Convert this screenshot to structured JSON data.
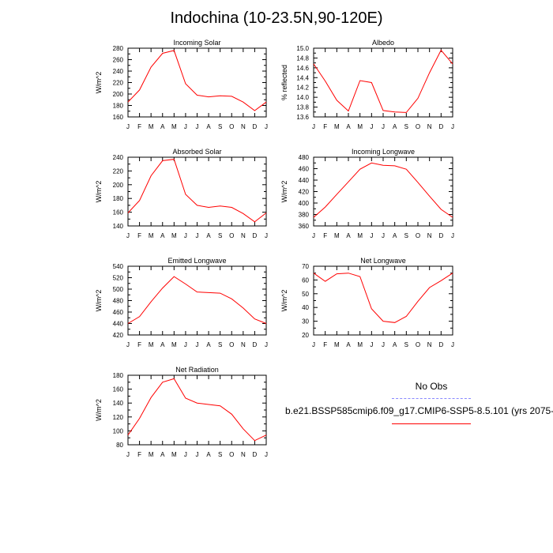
{
  "title": "Indochina (10-23.5N,90-120E)",
  "legend": {
    "obs_label": "No Obs",
    "obs_color": "#8888ff",
    "model_label": "b.e21.BSSP585cmip6.f09_g17.CMIP6-SSP5-8.5.101 (yrs 2075-",
    "model_color": "#ff0000"
  },
  "chart_data": [
    {
      "type": "line",
      "title": "Incoming Solar",
      "ylabel": "W/m^2",
      "categories": [
        "J",
        "F",
        "M",
        "A",
        "M",
        "J",
        "J",
        "A",
        "S",
        "O",
        "N",
        "D",
        "J"
      ],
      "ylim": [
        160,
        280
      ],
      "yticks": [
        160,
        180,
        200,
        220,
        240,
        260,
        280
      ],
      "series": [
        {
          "values": [
            186,
            207,
            247,
            271,
            276,
            218,
            198,
            195,
            197,
            196,
            186,
            171,
            186
          ],
          "color": "#ff0000"
        }
      ]
    },
    {
      "type": "line",
      "title": "Albedo",
      "ylabel": "% reflected",
      "categories": [
        "J",
        "F",
        "M",
        "A",
        "M",
        "J",
        "J",
        "A",
        "S",
        "O",
        "N",
        "D",
        "J"
      ],
      "ylim": [
        13.6,
        15.0
      ],
      "yticks": [
        13.6,
        13.8,
        14.0,
        14.2,
        14.4,
        14.6,
        14.8,
        15.0
      ],
      "ytick_decimals": 1,
      "series": [
        {
          "values": [
            14.68,
            14.33,
            13.94,
            13.72,
            14.34,
            14.3,
            13.73,
            13.7,
            13.69,
            13.98,
            14.5,
            14.96,
            14.68
          ],
          "color": "#ff0000"
        }
      ]
    },
    {
      "type": "line",
      "title": "Absorbed Solar",
      "ylabel": "W/m^2",
      "categories": [
        "J",
        "F",
        "M",
        "A",
        "M",
        "J",
        "J",
        "A",
        "S",
        "O",
        "N",
        "D",
        "J"
      ],
      "ylim": [
        140,
        240
      ],
      "yticks": [
        140,
        160,
        180,
        200,
        220,
        240
      ],
      "series": [
        {
          "values": [
            159,
            177,
            213,
            235,
            237,
            186,
            170,
            167,
            169,
            167,
            158,
            146,
            159
          ],
          "color": "#ff0000"
        }
      ]
    },
    {
      "type": "line",
      "title": "Incoming Longwave",
      "ylabel": "W/m^2",
      "categories": [
        "J",
        "F",
        "M",
        "A",
        "M",
        "J",
        "J",
        "A",
        "S",
        "O",
        "N",
        "D",
        "J"
      ],
      "ylim": [
        360,
        480
      ],
      "yticks": [
        360,
        380,
        400,
        420,
        440,
        460,
        480
      ],
      "series": [
        {
          "values": [
            375,
            393,
            415,
            437,
            459,
            470,
            466,
            465,
            459,
            436,
            412,
            389,
            375
          ],
          "color": "#ff0000"
        }
      ]
    },
    {
      "type": "line",
      "title": "Emitted Longwave",
      "ylabel": "W/m^2",
      "categories": [
        "J",
        "F",
        "M",
        "A",
        "M",
        "J",
        "J",
        "A",
        "S",
        "O",
        "N",
        "D",
        "J"
      ],
      "ylim": [
        420,
        540
      ],
      "yticks": [
        420,
        440,
        460,
        480,
        500,
        520,
        540
      ],
      "series": [
        {
          "values": [
            440,
            452,
            478,
            502,
            522,
            509,
            495,
            494,
            493,
            483,
            467,
            448,
            440
          ],
          "color": "#ff0000"
        }
      ]
    },
    {
      "type": "line",
      "title": "Net Longwave",
      "ylabel": "W/m^2",
      "categories": [
        "J",
        "F",
        "M",
        "A",
        "M",
        "J",
        "J",
        "A",
        "S",
        "O",
        "N",
        "D",
        "J"
      ],
      "ylim": [
        20,
        70
      ],
      "yticks": [
        20,
        30,
        40,
        50,
        60,
        70
      ],
      "series": [
        {
          "values": [
            65,
            59,
            64.5,
            65,
            62.5,
            39,
            30,
            29,
            33.5,
            44.5,
            54.5,
            59.5,
            65
          ],
          "color": "#ff0000"
        }
      ]
    },
    {
      "type": "line",
      "title": "Net Radiation",
      "ylabel": "W/m^2",
      "categories": [
        "J",
        "F",
        "M",
        "A",
        "M",
        "J",
        "J",
        "A",
        "S",
        "O",
        "N",
        "D",
        "J"
      ],
      "ylim": [
        80,
        180
      ],
      "yticks": [
        80,
        100,
        120,
        140,
        160,
        180
      ],
      "series": [
        {
          "values": [
            94,
            118,
            148,
            170,
            175,
            147,
            140,
            138,
            136,
            124,
            103,
            86,
            94
          ],
          "color": "#ff0000"
        }
      ]
    }
  ]
}
